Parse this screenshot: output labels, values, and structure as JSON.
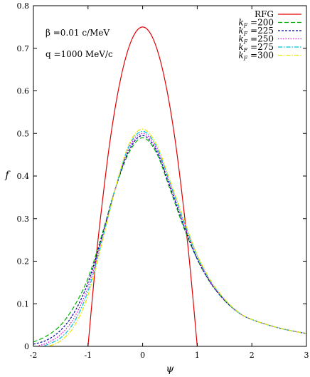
{
  "chart_data": {
    "type": "line",
    "xlabel": "ψ",
    "ylabel": "f",
    "xlim": [
      -2,
      3
    ],
    "ylim": [
      0,
      0.8
    ],
    "xticks": [
      "-2",
      "-1",
      "0",
      "1",
      "2",
      "3"
    ],
    "yticks": [
      "0",
      "0.1",
      "0.2",
      "0.3",
      "0.4",
      "0.5",
      "0.6",
      "0.7",
      "0.8"
    ],
    "xtick_values": [
      -2,
      -1,
      0,
      1,
      2,
      3
    ],
    "ytick_values": [
      0,
      0.1,
      0.2,
      0.3,
      0.4,
      0.5,
      0.6,
      0.7,
      0.8
    ],
    "legend_position": "top-right",
    "annotations": [
      "β =0.01 c/MeV",
      "q =1000 MeV/c"
    ],
    "series": [
      {
        "name": "RFG",
        "color": "#e00000",
        "style": "solid",
        "x": [
          -1.0,
          -0.9,
          -0.8,
          -0.6,
          -0.4,
          -0.2,
          0.0,
          0.2,
          0.4,
          0.6,
          0.8,
          0.9,
          1.0
        ],
        "y": [
          0.0,
          0.1425,
          0.27,
          0.48,
          0.63,
          0.72,
          0.75,
          0.72,
          0.63,
          0.48,
          0.27,
          0.1425,
          0.0
        ]
      },
      {
        "name": "k_F =200",
        "color": "#00b000",
        "style": "dashed",
        "x": [
          -2.0,
          -1.75,
          -1.5,
          -1.25,
          -1.0,
          -0.75,
          -0.5,
          -0.25,
          0.0,
          0.25,
          0.5,
          0.75,
          1.0,
          1.25,
          1.5,
          1.75,
          2.0,
          2.5,
          3.0
        ],
        "y": [
          0.01,
          0.025,
          0.05,
          0.095,
          0.16,
          0.26,
          0.37,
          0.455,
          0.49,
          0.455,
          0.37,
          0.28,
          0.205,
          0.148,
          0.108,
          0.08,
          0.063,
          0.043,
          0.03
        ]
      },
      {
        "name": "k_F =225",
        "color": "#0000a0",
        "style": "short-dashed",
        "x": [
          -2.0,
          -1.75,
          -1.5,
          -1.25,
          -1.0,
          -0.75,
          -0.5,
          -0.25,
          0.0,
          0.25,
          0.5,
          0.75,
          1.0,
          1.25,
          1.5,
          1.75,
          2.0,
          2.5,
          3.0
        ],
        "y": [
          0.005,
          0.015,
          0.038,
          0.08,
          0.15,
          0.255,
          0.37,
          0.46,
          0.495,
          0.46,
          0.375,
          0.285,
          0.205,
          0.148,
          0.108,
          0.08,
          0.063,
          0.043,
          0.03
        ]
      },
      {
        "name": "k_F =250",
        "color": "#e000e0",
        "style": "dotted",
        "x": [
          -1.9,
          -1.75,
          -1.5,
          -1.25,
          -1.0,
          -0.75,
          -0.5,
          -0.25,
          0.0,
          0.25,
          0.5,
          0.75,
          1.0,
          1.25,
          1.5,
          1.75,
          2.0,
          2.5,
          3.0
        ],
        "y": [
          0.002,
          0.008,
          0.028,
          0.068,
          0.14,
          0.25,
          0.37,
          0.465,
          0.5,
          0.465,
          0.38,
          0.29,
          0.21,
          0.15,
          0.11,
          0.08,
          0.063,
          0.043,
          0.03
        ]
      },
      {
        "name": "k_F =275",
        "color": "#00c0e0",
        "style": "dash-dot",
        "x": [
          -1.8,
          -1.75,
          -1.5,
          -1.25,
          -1.0,
          -0.75,
          -0.5,
          -0.25,
          0.0,
          0.25,
          0.5,
          0.75,
          1.0,
          1.25,
          1.5,
          1.75,
          2.0,
          2.5,
          3.0
        ],
        "y": [
          0.001,
          0.004,
          0.02,
          0.058,
          0.13,
          0.245,
          0.37,
          0.47,
          0.505,
          0.47,
          0.385,
          0.295,
          0.212,
          0.152,
          0.11,
          0.08,
          0.063,
          0.043,
          0.03
        ]
      },
      {
        "name": "k_F =300",
        "color": "#e8e800",
        "style": "dash-dot",
        "x": [
          -1.7,
          -1.5,
          -1.25,
          -1.0,
          -0.75,
          -0.5,
          -0.25,
          0.0,
          0.25,
          0.5,
          0.75,
          1.0,
          1.25,
          1.5,
          1.75,
          2.0,
          2.5,
          3.0
        ],
        "y": [
          0.001,
          0.013,
          0.048,
          0.12,
          0.24,
          0.37,
          0.475,
          0.51,
          0.475,
          0.39,
          0.3,
          0.215,
          0.154,
          0.111,
          0.081,
          0.063,
          0.043,
          0.03
        ]
      }
    ]
  }
}
